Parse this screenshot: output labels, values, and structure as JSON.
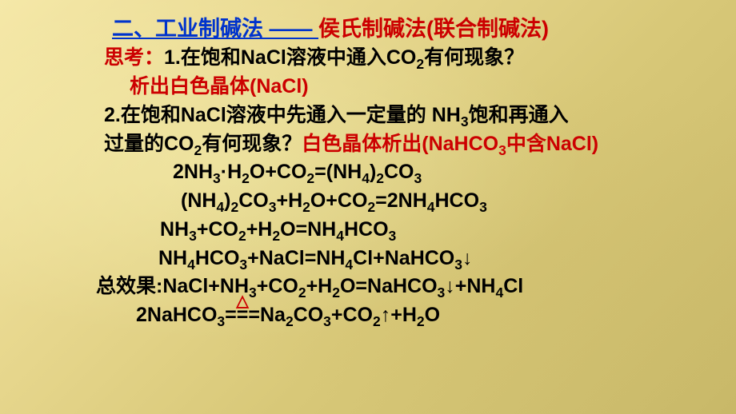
{
  "title": {
    "part1": "二、工业制碱法 —— ",
    "part2": "侯氏制碱法(联合制碱法)"
  },
  "sikao_label": "思考：",
  "q1": {
    "text": "1.在饱和NaCl溶液中通入CO",
    "sub": "2",
    "tail": "有何现象？",
    "answer": "析出白色晶体(NaCl)"
  },
  "q2": {
    "line1a": "2.在饱和NaCl溶液中先通入一定量的 NH",
    "line1a_sub": "3",
    "line1b": "饱和再通入",
    "line2a": "过量的CO",
    "line2a_sub": "2",
    "line2b": "有何现象？",
    "ans_a": "白色晶体析出(NaHCO",
    "ans_a_sub": "3",
    "ans_b": "中含NaCl)"
  },
  "eq1": "2NH<sub>3</sub>·H<sub>2</sub>O+CO<sub>2</sub>=(NH<sub>4</sub>)<sub>2</sub>CO<sub>3</sub>",
  "eq2": "(NH<sub>4</sub>)<sub>2</sub>CO<sub>3</sub>+H<sub>2</sub>O+CO<sub>2</sub>=2NH<sub>4</sub>HCO<sub>3</sub>",
  "eq3": "NH<sub>3</sub>+CO<sub>2</sub>+H<sub>2</sub>O=NH<sub>4</sub>HCO<sub>3</sub>",
  "eq4": "NH<sub>4</sub>HCO<sub>3</sub>+NaCl=NH<sub>4</sub>Cl+NaHCO<sub>3</sub>↓",
  "eq5_label": "总效果:",
  "eq5": "NaCl+NH<sub>3</sub>+CO<sub>2</sub>+H<sub>2</sub>O=NaHCO<sub>3</sub>↓+NH<sub>4</sub>Cl",
  "eq6_left": "2NaHCO<sub>3</sub>",
  "eq6_mid": "===",
  "eq6_right": "Na<sub>2</sub>CO<sub>3</sub>+CO<sub>2</sub>↑+H<sub>2</sub>O",
  "delta": "△",
  "colors": {
    "blue": "#0033cc",
    "red": "#cc0000",
    "black": "#000000"
  }
}
